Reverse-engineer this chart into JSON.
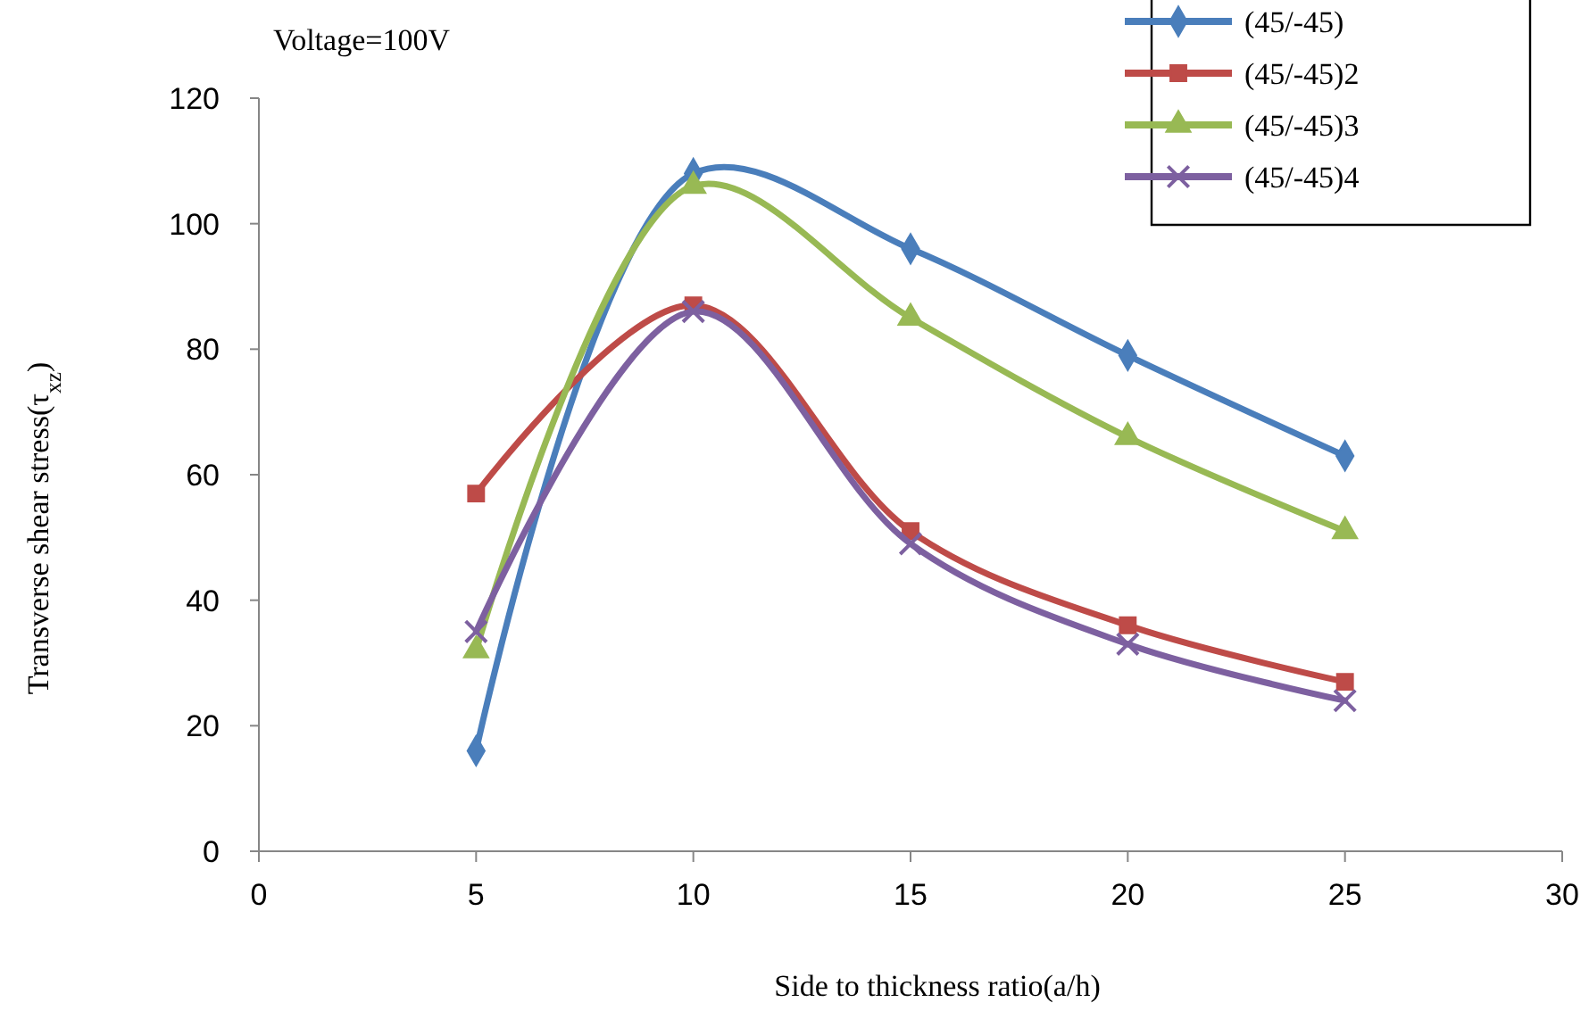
{
  "chart_data": {
    "type": "line",
    "xlabel": "Side  to thickness ratio(a/h)",
    "ylabel": "Transverse shear stress(τ$_{xz}$)",
    "annotations": [
      "Voltage=100V"
    ],
    "x": [
      5,
      10,
      15,
      20,
      25
    ],
    "xlim": [
      0,
      30
    ],
    "xticks": [
      0,
      5,
      10,
      15,
      20,
      25,
      30
    ],
    "ylim": [
      0,
      120
    ],
    "yticks": [
      0,
      20,
      40,
      60,
      80,
      100,
      120
    ],
    "grid": false,
    "legend": "top right",
    "line_style": "solid",
    "series": [
      {
        "name": "(45/-45)",
        "color": "#4a7ebb",
        "marker": "diamond",
        "values": [
          16,
          108,
          96,
          79,
          63
        ]
      },
      {
        "name": "(45/-45)2",
        "color": "#be4b48",
        "marker": "square",
        "values": [
          57,
          87,
          51,
          36,
          27
        ]
      },
      {
        "name": "(45/-45)3",
        "color": "#98b954",
        "marker": "triangle",
        "values": [
          32,
          106,
          85,
          66,
          51
        ]
      },
      {
        "name": "(45/-45)4",
        "color": "#7d60a0",
        "marker": "cross",
        "values": [
          35,
          86,
          49,
          33,
          24
        ]
      }
    ]
  }
}
